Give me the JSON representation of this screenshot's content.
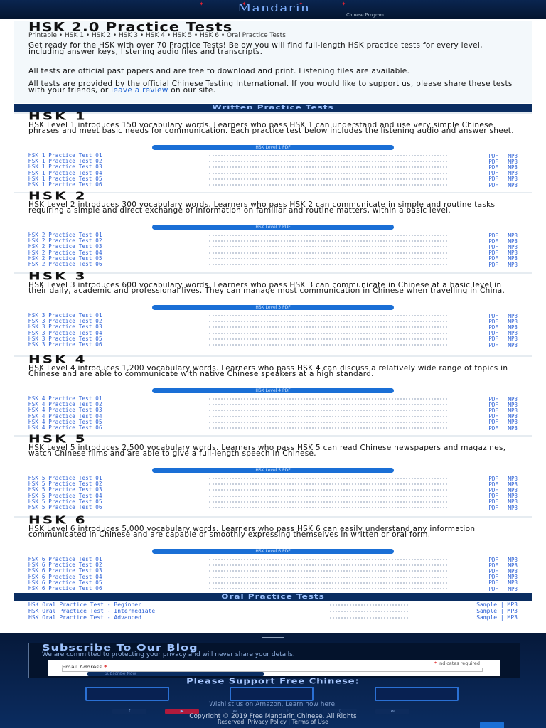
{
  "header": {
    "logo_text": "Mandarin",
    "logo_tag": "Chinese Program"
  },
  "intro": {
    "title": "HSK 2.0 Practice Tests",
    "subtitle": "Printable • HSK 1 • HSK 2 • HSK 3 • HSK 4 • HSK 5 • HSK 6 • Oral Practice Tests",
    "p1": "Get ready for the HSK with over 70 Practice Tests! Below you will find full-length HSK practice tests for every level, including answer keys, listening audio files and transcripts.",
    "p2": "All tests are official past papers and are free to download and print. Listening files are available.",
    "p3": "All tests are provided by the official Chinese Testing International. If you would like to support us, please share these tests with your friends, or",
    "p3_link": "leave a review",
    "p3_end": "on our site."
  },
  "sections": {
    "written": "Written Practice Tests",
    "oral": "Oral Practice Tests"
  },
  "levels": [
    {
      "title": "HSK 1",
      "desc": "HSK Level 1 introduces 150 vocabulary words. Learners who pass HSK 1 can understand and use very simple Chinese phrases and meet basic needs for communication. Each practice test below includes the listening audio and answer sheet.",
      "button": "HSK Level 1 PDF",
      "tests": [
        {
          "name": "HSK 1 Practice Test 01",
          "links": "PDF | MP3"
        },
        {
          "name": "HSK 1 Practice Test 02",
          "links": "PDF | MP3"
        },
        {
          "name": "HSK 1 Practice Test 03",
          "links": "PDF | MP3"
        },
        {
          "name": "HSK 1 Practice Test 04",
          "links": "PDF | MP3"
        },
        {
          "name": "HSK 1 Practice Test 05",
          "links": "PDF | MP3"
        },
        {
          "name": "HSK 1 Practice Test 06",
          "links": "PDF | MP3"
        }
      ]
    },
    {
      "title": "HSK 2",
      "desc": "HSK Level 2 introduces 300 vocabulary words. Learners who pass HSK 2 can communicate in simple and routine tasks requiring a simple and direct exchange of information on familiar and routine matters, within a basic level.",
      "button": "HSK Level 2 PDF",
      "tests": [
        {
          "name": "HSK 2 Practice Test 01",
          "links": "PDF | MP3"
        },
        {
          "name": "HSK 2 Practice Test 02",
          "links": "PDF | MP3"
        },
        {
          "name": "HSK 2 Practice Test 03",
          "links": "PDF | MP3"
        },
        {
          "name": "HSK 2 Practice Test 04",
          "links": "PDF | MP3"
        },
        {
          "name": "HSK 2 Practice Test 05",
          "links": "PDF | MP3"
        },
        {
          "name": "HSK 2 Practice Test 06",
          "links": "PDF | MP3"
        }
      ]
    },
    {
      "title": "HSK 3",
      "desc": "HSK Level 3 introduces 600 vocabulary words. Learners who pass HSK 3 can communicate in Chinese at a basic level in their daily, academic and professional lives. They can manage most communication in Chinese when travelling in China.",
      "button": "HSK Level 3 PDF",
      "tests": [
        {
          "name": "HSK 3 Practice Test 01",
          "links": "PDF | MP3"
        },
        {
          "name": "HSK 3 Practice Test 02",
          "links": "PDF | MP3"
        },
        {
          "name": "HSK 3 Practice Test 03",
          "links": "PDF | MP3"
        },
        {
          "name": "HSK 3 Practice Test 04",
          "links": "PDF | MP3"
        },
        {
          "name": "HSK 3 Practice Test 05",
          "links": "PDF | MP3"
        },
        {
          "name": "HSK 3 Practice Test 06",
          "links": "PDF | MP3"
        }
      ]
    },
    {
      "title": "HSK 4",
      "desc": "HSK Level 4 introduces 1,200 vocabulary words. Learners who pass HSK 4 can discuss a relatively wide range of topics in Chinese and are able to communicate with native Chinese speakers at a high standard.",
      "button": "HSK Level 4 PDF",
      "tests": [
        {
          "name": "HSK 4 Practice Test 01",
          "links": "PDF | MP3"
        },
        {
          "name": "HSK 4 Practice Test 02",
          "links": "PDF | MP3"
        },
        {
          "name": "HSK 4 Practice Test 03",
          "links": "PDF | MP3"
        },
        {
          "name": "HSK 4 Practice Test 04",
          "links": "PDF | MP3"
        },
        {
          "name": "HSK 4 Practice Test 05",
          "links": "PDF | MP3"
        },
        {
          "name": "HSK 4 Practice Test 06",
          "links": "PDF | MP3"
        }
      ]
    },
    {
      "title": "HSK 5",
      "desc": "HSK Level 5 introduces 2,500 vocabulary words. Learners who pass HSK 5 can read Chinese newspapers and magazines, watch Chinese films and are able to give a full-length speech in Chinese.",
      "button": "HSK Level 5 PDF",
      "tests": [
        {
          "name": "HSK 5 Practice Test 01",
          "links": "PDF | MP3"
        },
        {
          "name": "HSK 5 Practice Test 02",
          "links": "PDF | MP3"
        },
        {
          "name": "HSK 5 Practice Test 03",
          "links": "PDF | MP3"
        },
        {
          "name": "HSK 5 Practice Test 04",
          "links": "PDF | MP3"
        },
        {
          "name": "HSK 5 Practice Test 05",
          "links": "PDF | MP3"
        },
        {
          "name": "HSK 5 Practice Test 06",
          "links": "PDF | MP3"
        }
      ]
    },
    {
      "title": "HSK 6",
      "desc": "HSK Level 6 introduces 5,000 vocabulary words. Learners who pass HSK 6 can easily understand any information communicated in Chinese and are capable of smoothly expressing themselves in written or oral form.",
      "button": "HSK Level 6 PDF",
      "tests": [
        {
          "name": "HSK 6 Practice Test 01",
          "links": "PDF | MP3"
        },
        {
          "name": "HSK 6 Practice Test 02",
          "links": "PDF | MP3"
        },
        {
          "name": "HSK 6 Practice Test 03",
          "links": "PDF | MP3"
        },
        {
          "name": "HSK 6 Practice Test 04",
          "links": "PDF | MP3"
        },
        {
          "name": "HSK 6 Practice Test 05",
          "links": "PDF | MP3"
        },
        {
          "name": "HSK 6 Practice Test 06",
          "links": "PDF | MP3"
        }
      ]
    }
  ],
  "oral_tests": [
    {
      "name": "HSK Oral Practice Test - Beginner",
      "links": "Sample | MP3"
    },
    {
      "name": "HSK Oral Practice Test - Intermediate",
      "links": "Sample | MP3"
    },
    {
      "name": "HSK Oral Practice Test - Advanced",
      "links": "Sample | MP3"
    }
  ],
  "footer": {
    "subscribe_title": "Subscribe To Our Blog",
    "subscribe_text": "We are committed to protecting your privacy and will never share your details.",
    "required_note": "indicates required",
    "email_label": "Email Address",
    "subscribe_button": "Subscribe Now",
    "support_title": "Please Support Free Chinese:",
    "wishlist": "Wishlist us on Amazon, Learn how here.",
    "social": [
      "f",
      "▶",
      "✉",
      "♪",
      "♫",
      "✉"
    ],
    "copyright": "Copyright © 2019 Free Mandarin Chinese. All Rights",
    "copyright2": "Reserved. Privacy Policy | Terms of Use"
  },
  "colors": {
    "accent": "#1a6fd6",
    "navy": "#0a2d61",
    "link": "#2a5fd6"
  }
}
